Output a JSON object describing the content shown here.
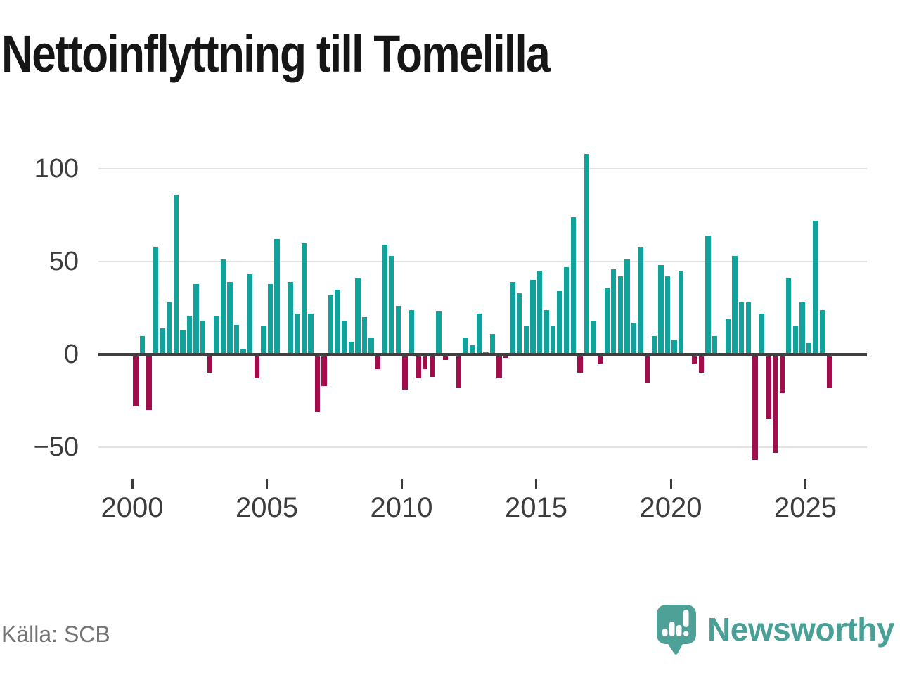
{
  "title": "Nettoinflyttning till Tomelilla",
  "source": "Källa: SCB",
  "branding": {
    "logo_text": "Newsworthy",
    "logo_color": "#48a096"
  },
  "chart_data": {
    "type": "bar",
    "title": "Nettoinflyttning till Tomelilla",
    "frequency": "quarterly",
    "start": "2000-Q1",
    "end": "2025-Q4",
    "values": [
      -28,
      10,
      -30,
      58,
      14,
      28,
      86,
      13,
      21,
      38,
      18,
      -10,
      21,
      51,
      39,
      16,
      3,
      43,
      -13,
      15,
      38,
      62,
      0,
      39,
      22,
      60,
      22,
      -31,
      -17,
      32,
      35,
      18,
      7,
      41,
      20,
      9,
      -8,
      59,
      53,
      26,
      -19,
      24,
      -13,
      -8,
      -12,
      23,
      -3,
      0,
      -18,
      9,
      5,
      22,
      1,
      11,
      -13,
      -2,
      39,
      33,
      15,
      40,
      45,
      24,
      15,
      34,
      47,
      74,
      -10,
      108,
      18,
      -5,
      36,
      46,
      42,
      51,
      17,
      58,
      -15,
      10,
      48,
      42,
      8,
      45,
      0,
      -5,
      -10,
      64,
      10,
      0,
      19,
      53,
      28,
      28,
      -57,
      22,
      -35,
      -53,
      -21,
      41,
      15,
      28,
      6,
      72,
      24,
      -18
    ],
    "x_tick_labels": [
      "2000",
      "2005",
      "2010",
      "2015",
      "2020",
      "2025"
    ],
    "y_tick_labels": [
      "100",
      "50",
      "0",
      "−50"
    ],
    "y_ticks": [
      100,
      50,
      0,
      -50
    ],
    "ylim": [
      -60,
      115
    ],
    "grid": "horizontal",
    "legend": "none",
    "positive_color": "#10a29b",
    "negative_color": "#a30d4b",
    "gridline_color": "#e2e2e2",
    "zero_line_color": "#404040",
    "axis_text_color": "#3c3c3c"
  }
}
